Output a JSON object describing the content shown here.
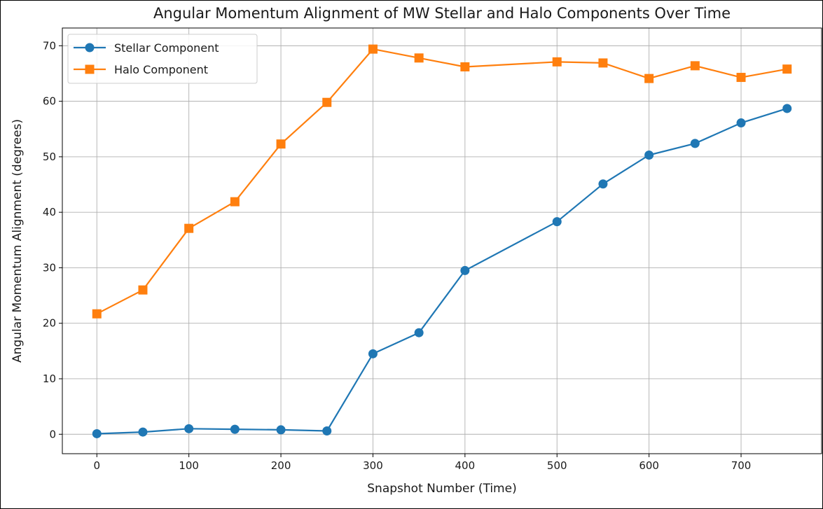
{
  "chart_data": {
    "type": "line",
    "title": "Angular Momentum Alignment of MW Stellar and Halo Components Over Time",
    "xlabel": "Snapshot Number (Time)",
    "ylabel": "Angular Momentum Alignment (degrees)",
    "xlim": [
      -37.5,
      787.5
    ],
    "ylim": [
      -3.5,
      73.2
    ],
    "xticks": [
      0,
      100,
      200,
      300,
      400,
      500,
      600,
      700
    ],
    "yticks": [
      0,
      10,
      20,
      30,
      40,
      50,
      60,
      70
    ],
    "grid": true,
    "legend_position": "upper left",
    "x": [
      0,
      50,
      100,
      150,
      200,
      250,
      300,
      350,
      400,
      500,
      550,
      600,
      650,
      700,
      750
    ],
    "series": [
      {
        "name": "Stellar Component",
        "color": "#1f77b4",
        "marker": "circle",
        "values": [
          0.1,
          0.4,
          1.0,
          0.9,
          0.8,
          0.6,
          14.5,
          18.3,
          29.5,
          38.3,
          45.1,
          50.3,
          52.4,
          56.1,
          58.7
        ]
      },
      {
        "name": "Halo Component",
        "color": "#ff7f0e",
        "marker": "square",
        "values": [
          21.7,
          26.0,
          37.1,
          41.9,
          52.3,
          59.8,
          69.4,
          67.8,
          66.2,
          67.1,
          66.9,
          64.1,
          66.4,
          64.3,
          65.8
        ]
      }
    ]
  }
}
